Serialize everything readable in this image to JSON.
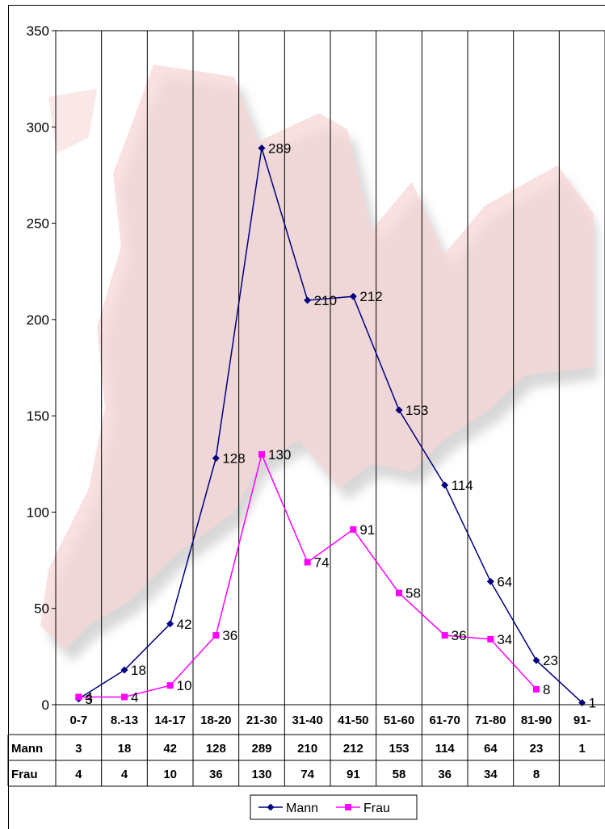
{
  "chart_data": {
    "type": "line",
    "categories": [
      "0-7",
      "8.-13",
      "14-17",
      "18-20",
      "21-30",
      "31-40",
      "41-50",
      "51-60",
      "61-70",
      "71-80",
      "81-90",
      "91-"
    ],
    "series": [
      {
        "name": "Mann",
        "color": "#000080",
        "marker": "diamond",
        "values": [
          3,
          18,
          42,
          128,
          289,
          210,
          212,
          153,
          114,
          64,
          23,
          1
        ]
      },
      {
        "name": "Frau",
        "color": "#ff00ff",
        "marker": "square",
        "values": [
          4,
          4,
          10,
          36,
          130,
          74,
          91,
          58,
          36,
          34,
          8,
          null
        ]
      }
    ],
    "ylim": [
      0,
      350
    ],
    "yticks": [
      0,
      50,
      100,
      150,
      200,
      250,
      300,
      350
    ],
    "grid": "vertical",
    "data_table": true,
    "legend": "bottom",
    "title": "",
    "xlabel": "",
    "ylabel": ""
  }
}
